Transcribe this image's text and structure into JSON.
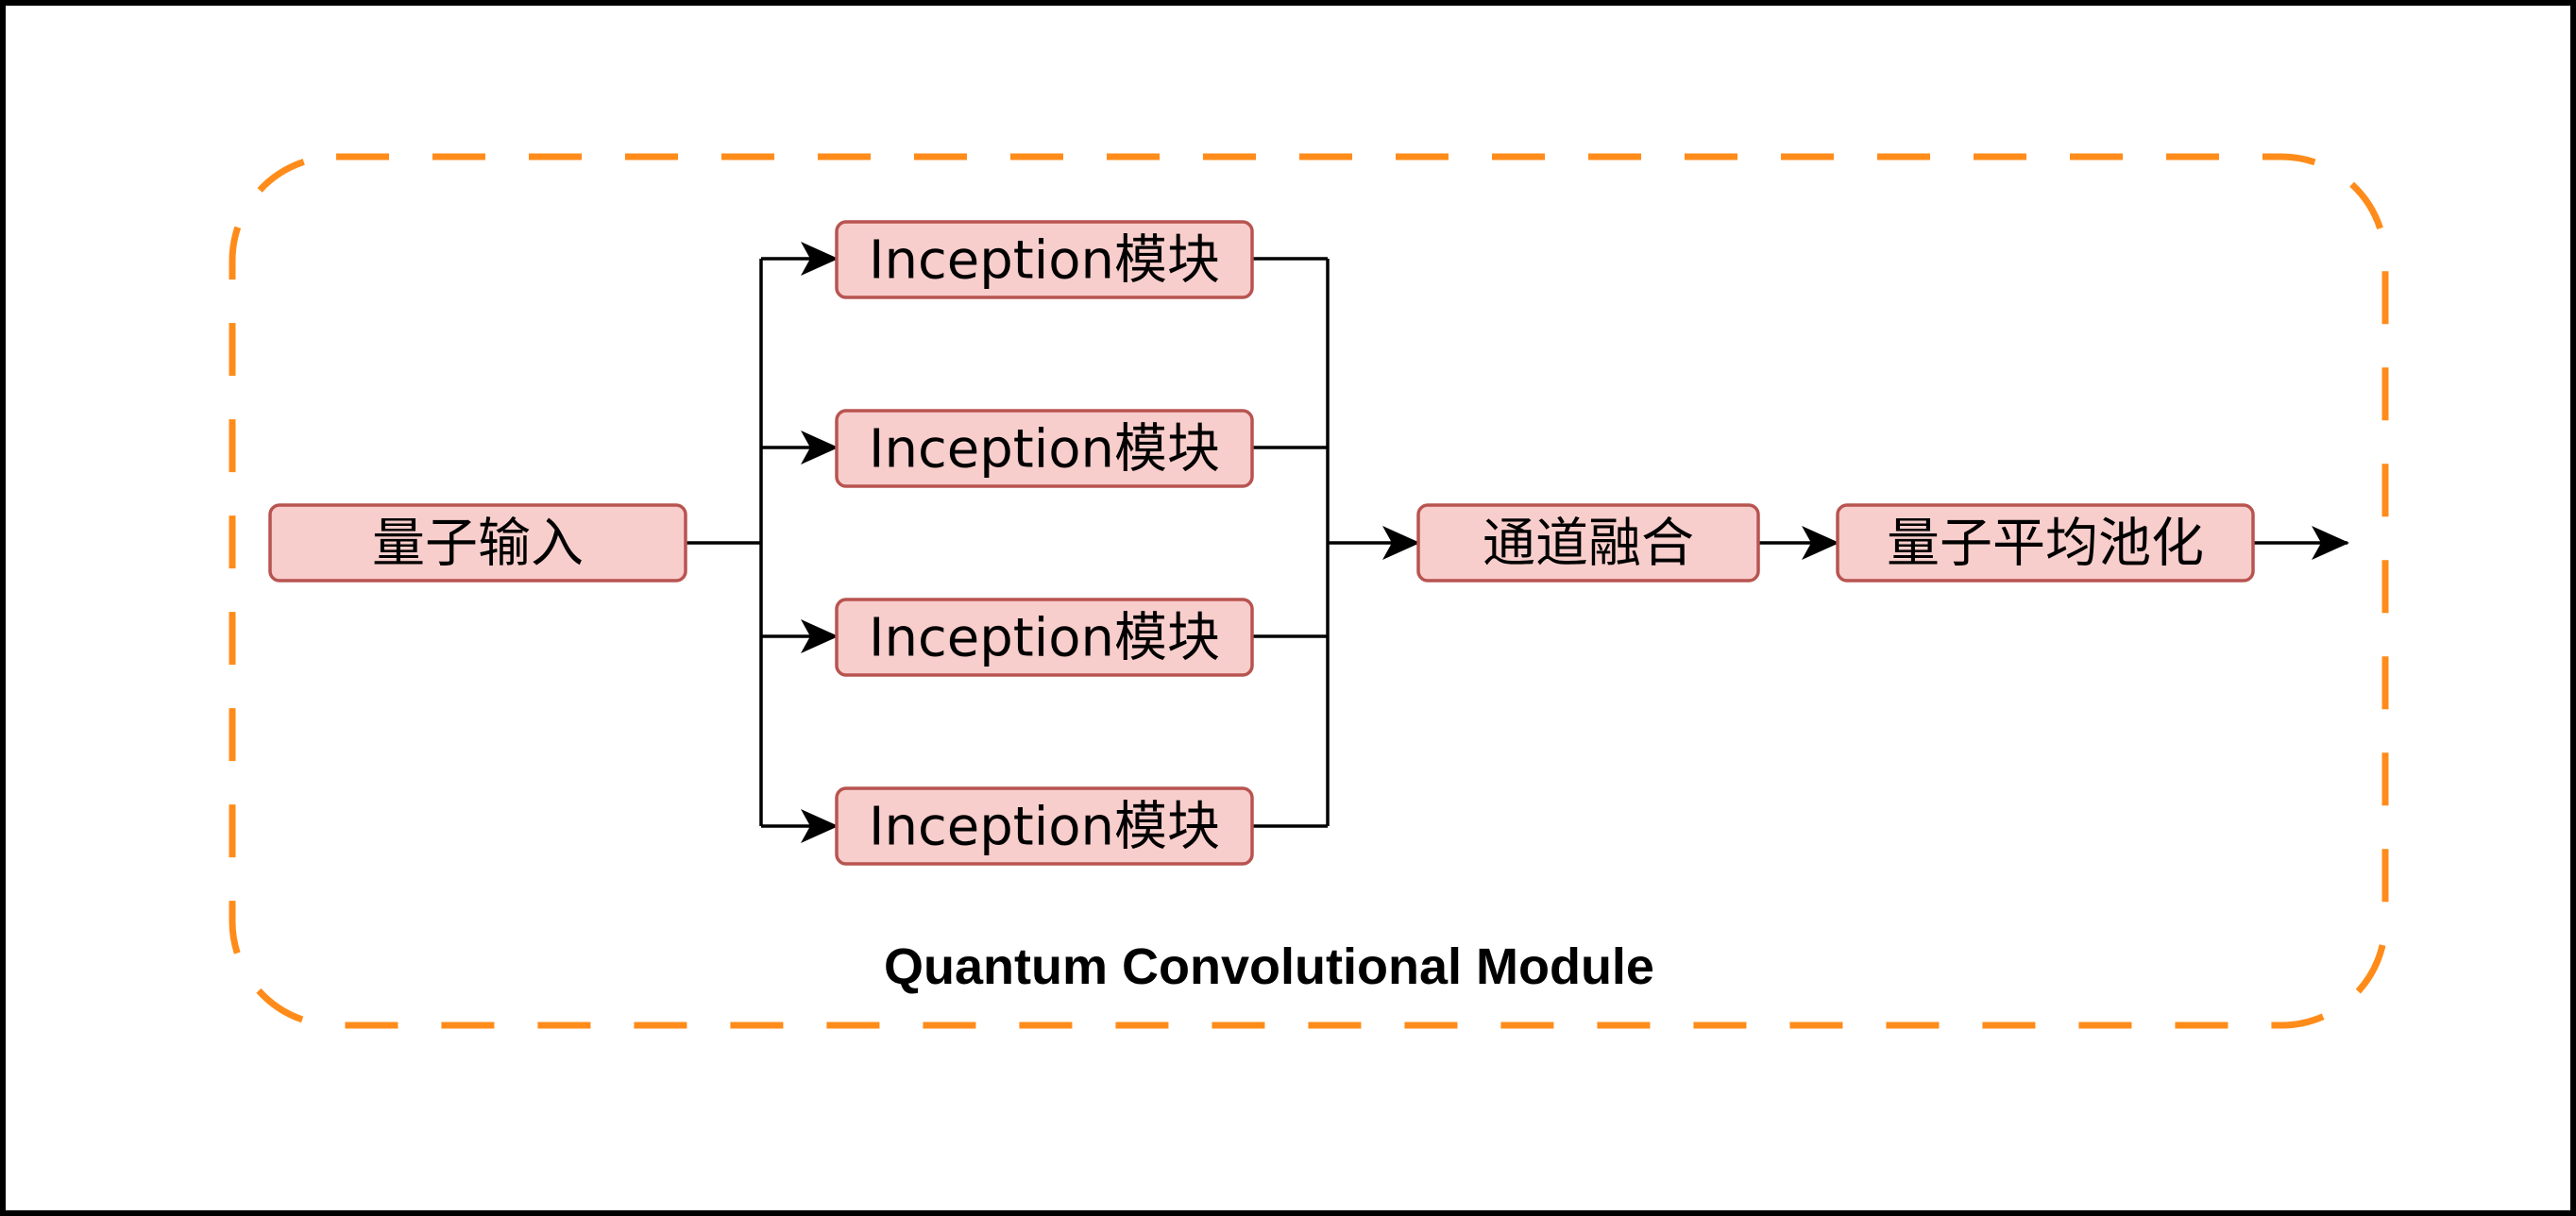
{
  "diagram": {
    "module_title": "Quantum Convolutional Module",
    "nodes": {
      "input": "量子输入",
      "inception_1": "Inception模块",
      "inception_2": "Inception模块",
      "inception_3": "Inception模块",
      "inception_4": "Inception模块",
      "fusion": "通道融合",
      "pooling": "量子平均池化"
    },
    "colors": {
      "node_fill": "#f8cecc",
      "node_stroke": "#b85450",
      "group_border": "#ff8c1a",
      "edge": "#000000",
      "frame": "#000000"
    }
  }
}
